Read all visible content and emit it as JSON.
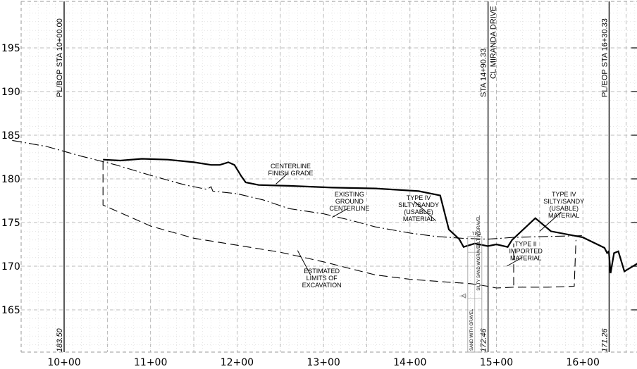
{
  "chart_data": {
    "type": "line",
    "x_ticks": [
      {
        "sta": 1000,
        "label": "10+00"
      },
      {
        "sta": 1100,
        "label": "11+00"
      },
      {
        "sta": 1200,
        "label": "12+00"
      },
      {
        "sta": 1300,
        "label": "13+00"
      },
      {
        "sta": 1400,
        "label": "14+00"
      },
      {
        "sta": 1500,
        "label": "15+00"
      },
      {
        "sta": 1600,
        "label": "16+00"
      }
    ],
    "y_ticks": [
      165,
      170,
      175,
      180,
      185,
      190,
      195
    ],
    "xlim": [
      931,
      1668
    ],
    "ylim": [
      159.2,
      200.8
    ],
    "grid": true,
    "station_lines": [
      {
        "sta": 1000,
        "top_label": "PL/BOP STA 10+00.00",
        "bottom_label": "183.50"
      },
      {
        "sta": 1490.33,
        "top_label": "STA 14+90.33",
        "top_label_2": "CL MIRANDA DRIVE",
        "bottom_label": "172.46"
      },
      {
        "sta": 1630.33,
        "top_label": "PL/EOP STA 16+30.33",
        "bottom_label": "171.26"
      }
    ],
    "series": [
      {
        "key": "finish_grade",
        "style": "solid-heavy",
        "points": [
          [
            1045,
            182.2
          ],
          [
            1065,
            182.1
          ],
          [
            1090,
            182.3
          ],
          [
            1120,
            182.2
          ],
          [
            1150,
            181.9
          ],
          [
            1170,
            181.6
          ],
          [
            1180,
            181.6
          ],
          [
            1190,
            181.9
          ],
          [
            1197,
            181.6
          ],
          [
            1205,
            180.3
          ],
          [
            1210,
            179.6
          ],
          [
            1225,
            179.3
          ],
          [
            1260,
            179.2
          ],
          [
            1310,
            179.0
          ],
          [
            1360,
            178.9
          ],
          [
            1410,
            178.6
          ],
          [
            1435,
            178.1
          ],
          [
            1445,
            174.2
          ],
          [
            1457,
            173.1
          ],
          [
            1462,
            172.2
          ],
          [
            1475,
            172.6
          ],
          [
            1490,
            172.3
          ],
          [
            1500,
            172.5
          ],
          [
            1513,
            172.2
          ],
          [
            1518,
            173.0
          ],
          [
            1545,
            175.5
          ],
          [
            1563,
            174.0
          ],
          [
            1600,
            173.3
          ],
          [
            1625,
            172.1
          ],
          [
            1628,
            171.5
          ],
          [
            1630,
            171.7
          ],
          [
            1632,
            169.2
          ],
          [
            1636,
            171.5
          ],
          [
            1641,
            171.7
          ],
          [
            1648,
            169.4
          ],
          [
            1668,
            170.6
          ]
        ]
      },
      {
        "key": "existing_ground",
        "style": "dashdot",
        "points": [
          [
            940,
            184.4
          ],
          [
            980,
            183.7
          ],
          [
            1020,
            182.6
          ],
          [
            1060,
            181.6
          ],
          [
            1100,
            180.4
          ],
          [
            1140,
            179.3
          ],
          [
            1165,
            178.8
          ],
          [
            1170,
            179.1
          ],
          [
            1172,
            178.6
          ],
          [
            1200,
            178.3
          ],
          [
            1230,
            177.6
          ],
          [
            1260,
            176.6
          ],
          [
            1300,
            176.0
          ],
          [
            1330,
            175.3
          ],
          [
            1360,
            174.5
          ],
          [
            1400,
            173.8
          ],
          [
            1430,
            173.4
          ],
          [
            1460,
            173.2
          ],
          [
            1490,
            173.1
          ],
          [
            1520,
            173.3
          ],
          [
            1560,
            173.4
          ],
          [
            1600,
            173.5
          ]
        ]
      },
      {
        "key": "excavation",
        "style": "dashed",
        "points": [
          [
            1045,
            182.0
          ],
          [
            1045,
            177.0
          ],
          [
            1100,
            174.6
          ],
          [
            1150,
            173.2
          ],
          [
            1200,
            172.4
          ],
          [
            1250,
            171.6
          ],
          [
            1300,
            170.5
          ],
          [
            1360,
            169.0
          ],
          [
            1400,
            168.5
          ],
          [
            1440,
            168.2
          ],
          [
            1470,
            168.0
          ],
          [
            1490,
            167.7
          ],
          [
            1500,
            167.5
          ],
          [
            1520,
            167.6
          ],
          [
            1560,
            167.6
          ],
          [
            1590,
            167.7
          ],
          [
            1592,
            173.0
          ]
        ]
      },
      {
        "key": "type_ii_box",
        "style": "dashed",
        "points": [
          [
            1520,
            167.8
          ],
          [
            1520,
            172.6
          ]
        ]
      }
    ],
    "annotations": [
      {
        "lines": [
          "CENTERLINE",
          "FINISH GRADE"
        ],
        "text_at": [
          1262,
          181.2
        ],
        "leader": [
          [
            1258,
            180.6
          ],
          [
            1245,
            179.4
          ]
        ]
      },
      {
        "lines": [
          "EXISTING",
          "GROUND",
          "CENTERLINE"
        ],
        "text_at": [
          1330,
          178.0
        ],
        "leader": [
          [
            1328,
            176.6
          ],
          [
            1310,
            175.6
          ]
        ]
      },
      {
        "lines": [
          "TYPE IV",
          "SILTY/SANDY",
          "(USABLE)",
          "MATERIAL"
        ],
        "text_at": [
          1410,
          177.6
        ],
        "leader": [
          [
            1405,
            177.4
          ],
          [
            1430,
            175.2
          ]
        ]
      },
      {
        "lines": [
          "TYPE IV",
          "SILTY/SANDY",
          "(USABLE)",
          "MATERIAL"
        ],
        "text_at": [
          1578,
          178.0
        ],
        "leader": [
          [
            1575,
            176.2
          ],
          [
            1550,
            174.0
          ]
        ]
      },
      {
        "lines": [
          "TYPE II",
          "IMPORTED",
          "MATERIAL"
        ],
        "text_at": [
          1534,
          172.3
        ],
        "leader": [
          [
            1530,
            171.0
          ],
          [
            1512,
            170.0
          ]
        ]
      },
      {
        "lines": [
          "ESTIMATED",
          "LIMITS OF",
          "EXCAVATION"
        ],
        "text_at": [
          1298,
          169.2
        ],
        "leader": [
          [
            1285,
            169.0
          ],
          [
            1270,
            171.8
          ]
        ]
      }
    ],
    "boring": {
      "sta": 1475,
      "label": "TP-1",
      "layers": [
        "SAND WITH GRAVEL",
        "SILTY SAND W/GRAVEL",
        "SILT W/GRAVEL"
      ]
    }
  }
}
